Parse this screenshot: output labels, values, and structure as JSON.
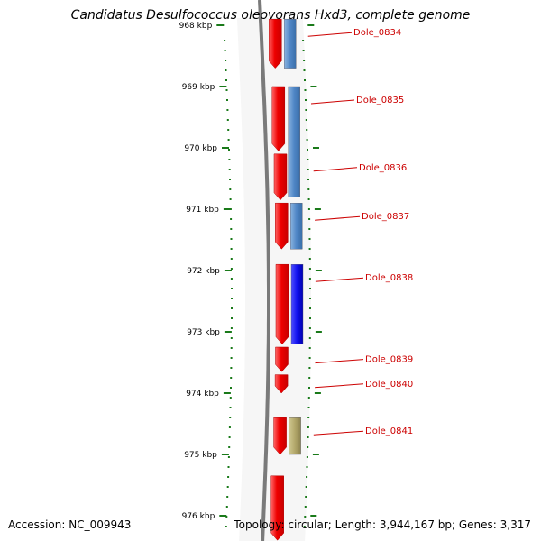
{
  "title": "Candidatus Desulfococcus oleovorans Hxd3, complete genome",
  "footer": {
    "accession": "Accession: NC_009943",
    "topology": "Topology: circular; Length: 3,944,167 bp; Genes: 3,317"
  },
  "ruler": {
    "ticks": [
      "968 kbp",
      "969 kbp",
      "970 kbp",
      "971 kbp",
      "972 kbp",
      "973 kbp",
      "974 kbp",
      "975 kbp",
      "976 kbp"
    ]
  },
  "colors": {
    "forward_gene": "#e8000b",
    "reverse_cds_a": "#4f86c6",
    "reverse_cds_b": "#1010ee",
    "reverse_cds_c": "#b2a76a",
    "label": "#cc0000",
    "ruler": "#1a7a1a",
    "backbone": "#7a7a7a"
  },
  "genes": [
    {
      "label": "Dole_0834",
      "start_kbp": 967.9,
      "end_kbp": 968.7,
      "forward": true,
      "reverse_color": "reverse_cds_a",
      "rev_start_kbp": 967.9,
      "rev_end_kbp": 968.7
    },
    {
      "label": "Dole_0835",
      "start_kbp": 969.0,
      "end_kbp": 970.05,
      "forward": true,
      "reverse_color": "reverse_cds_a",
      "rev_start_kbp": 969.0,
      "rev_end_kbp": 970.8
    },
    {
      "label": "Dole_0836",
      "start_kbp": 970.1,
      "end_kbp": 970.85,
      "forward": true,
      "reverse_color": null
    },
    {
      "label": "Dole_0837",
      "start_kbp": 970.9,
      "end_kbp": 971.65,
      "forward": true,
      "reverse_color": "reverse_cds_a",
      "rev_start_kbp": 970.9,
      "rev_end_kbp": 971.65
    },
    {
      "label": "Dole_0838",
      "start_kbp": 971.9,
      "end_kbp": 973.2,
      "forward": true,
      "reverse_color": "reverse_cds_b",
      "rev_start_kbp": 971.9,
      "rev_end_kbp": 973.2
    },
    {
      "label": "Dole_0839",
      "start_kbp": 973.25,
      "end_kbp": 973.65,
      "forward": true,
      "reverse_color": null
    },
    {
      "label": "Dole_0840",
      "start_kbp": 973.7,
      "end_kbp": 974.0,
      "forward": true,
      "reverse_color": null
    },
    {
      "label": "Dole_0841",
      "start_kbp": 974.4,
      "end_kbp": 975.0,
      "forward": true,
      "reverse_color": "reverse_cds_c",
      "rev_start_kbp": 974.4,
      "rev_end_kbp": 975.0
    },
    {
      "label": "",
      "start_kbp": 975.35,
      "end_kbp": 976.4,
      "forward": true,
      "reverse_color": null
    }
  ]
}
